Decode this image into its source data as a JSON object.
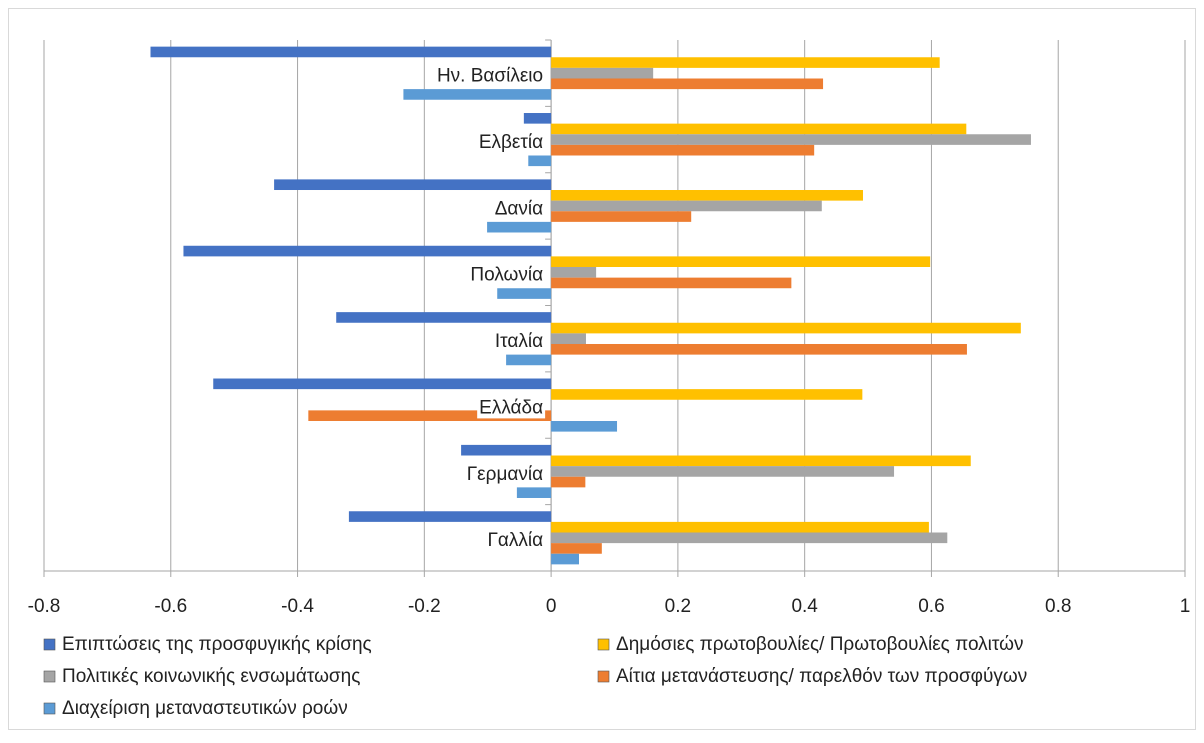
{
  "chart_data": {
    "type": "hbar",
    "categories": [
      "Ην. Βασίλειο",
      "Ελβετία",
      "Δανία",
      "Πολωνία",
      "Ιταλία",
      "Ελλάδα",
      "Γερμανία",
      "Γαλλία"
    ],
    "series": [
      {
        "name": "Επιπτώσεις της προσφυγικής κρίσης",
        "color": "#4472c4",
        "values": [
          -0.632,
          -0.043,
          -0.437,
          -0.58,
          -0.339,
          -0.533,
          -0.142,
          -0.319
        ]
      },
      {
        "name": "Δημόσιες πρωτοβουλίες/ Πρωτοβουλίες πολιτών",
        "color": "#ffc000",
        "values": [
          0.613,
          0.655,
          0.492,
          0.598,
          0.741,
          0.491,
          0.662,
          0.596
        ]
      },
      {
        "name": "Πολιτικές κοινωνικής ενσωμάτωσης",
        "color": "#a5a5a5",
        "values": [
          0.161,
          0.757,
          0.427,
          0.071,
          0.055,
          null,
          0.541,
          0.625
        ]
      },
      {
        "name": "Αίτια μετανάστευσης/ παρελθόν των προσφύγων",
        "color": "#ed7d31",
        "values": [
          0.429,
          0.415,
          0.221,
          0.379,
          0.656,
          -0.383,
          0.054,
          0.08
        ]
      },
      {
        "name": "Διαχείριση μεταναστευτικών ροών",
        "color": "#5b9bd5",
        "values": [
          -0.233,
          -0.036,
          -0.101,
          -0.085,
          -0.071,
          0.104,
          -0.054,
          0.044
        ]
      }
    ],
    "xlim": [
      -0.8,
      1
    ],
    "xticks": [
      -0.8,
      -0.6,
      -0.4,
      -0.2,
      0,
      0.2,
      0.4,
      0.6,
      0.8,
      1
    ],
    "grid": true,
    "legend": "bottom"
  }
}
